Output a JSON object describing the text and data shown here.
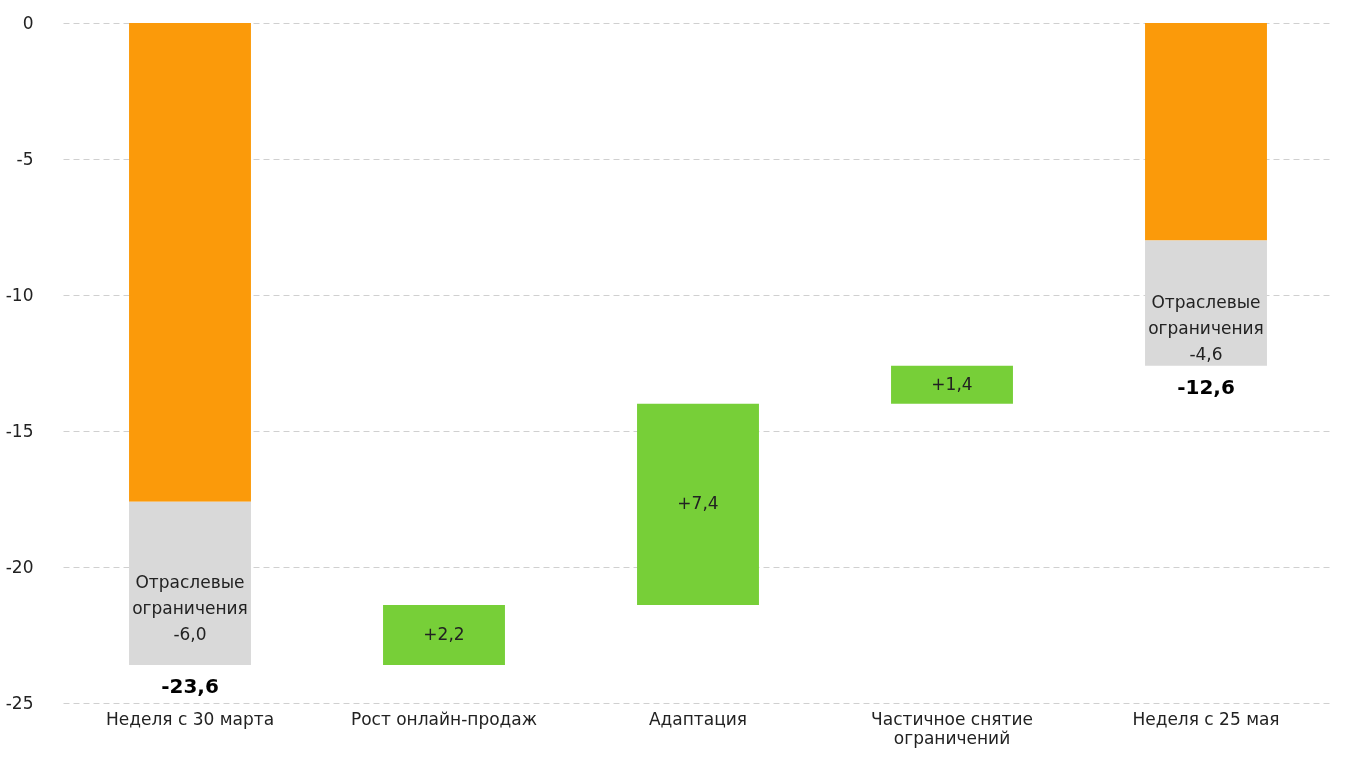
{
  "chart_data": {
    "type": "bar",
    "categories": [
      "Неделя с 30 марта",
      "Рост онлайн-продаж",
      "Адаптация",
      "Частичное снятие ограничений",
      "Неделя с 25 мая"
    ],
    "series": [
      {
        "color": "#fb9a0a",
        "values": [
          -17.6,
          null,
          null,
          null,
          -8.0
        ],
        "base": [
          0,
          null,
          null,
          null,
          0
        ]
      },
      {
        "color": "#d9d9d9",
        "values": [
          -6.0,
          null,
          null,
          null,
          -4.6
        ],
        "base": [
          -17.6,
          null,
          null,
          null,
          -8.0
        ],
        "value_labels": [
          "Отраслевые ограничения -6,0",
          null,
          null,
          null,
          "Отраслевые ограничения -4,6"
        ]
      },
      {
        "color": "#77cf38",
        "values": [
          null,
          2.2,
          7.4,
          1.4,
          null
        ],
        "base": [
          null,
          -23.6,
          -21.4,
          -14.0,
          null
        ],
        "value_labels": [
          null,
          "+2,2",
          "+7,4",
          "+1,4",
          null
        ]
      }
    ],
    "totals": [
      "-23,6",
      null,
      null,
      null,
      "-12,6"
    ],
    "ylim": [
      -25,
      0
    ],
    "yticks": [
      0,
      -5,
      -10,
      -15,
      -20,
      -25
    ],
    "grid": "y"
  }
}
